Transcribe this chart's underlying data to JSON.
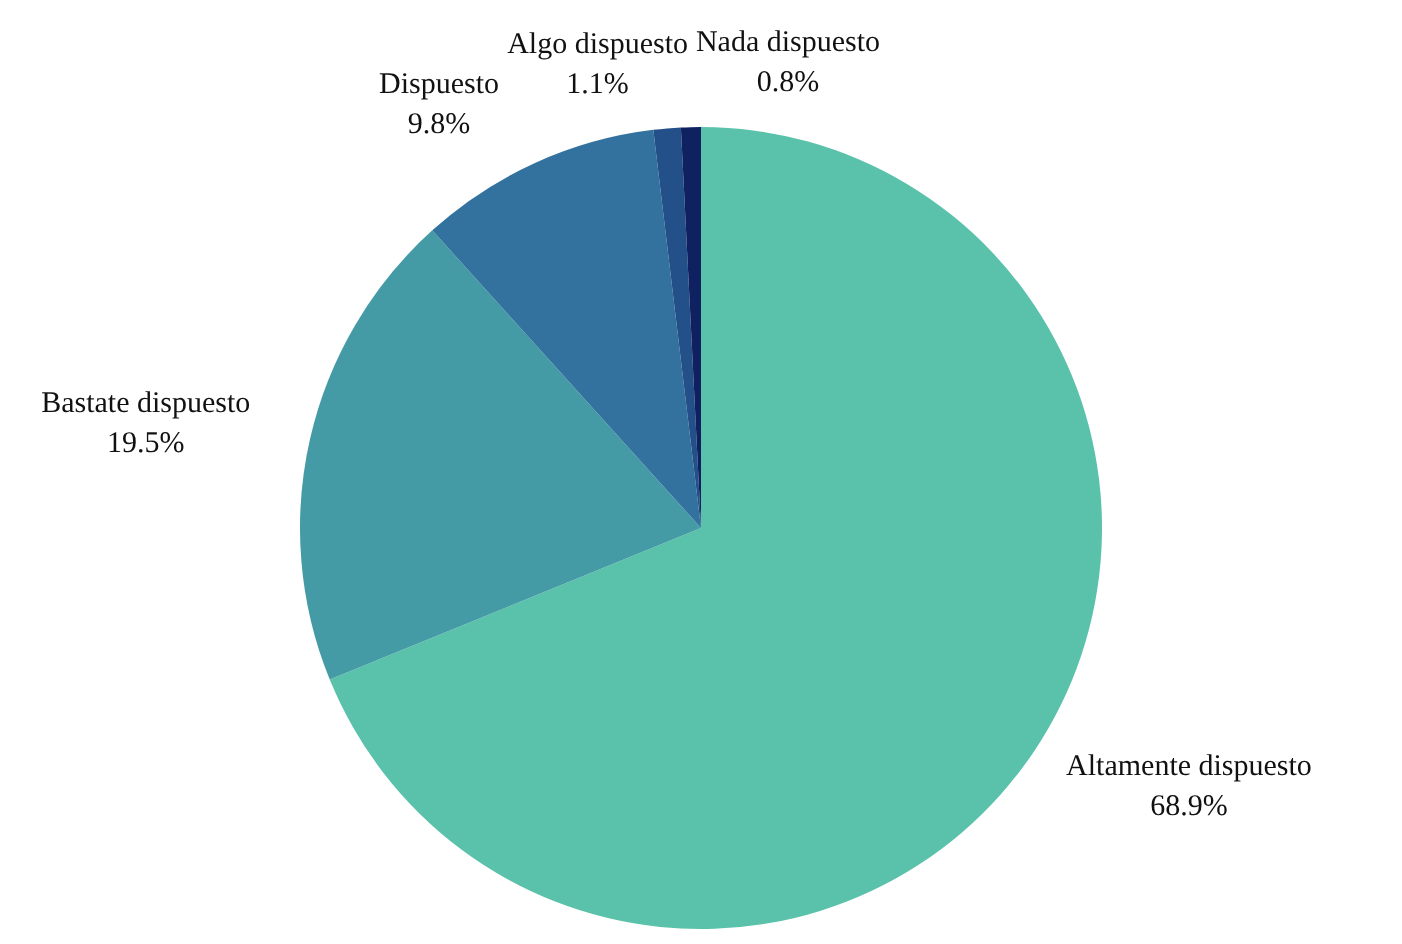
{
  "chart_data": {
    "type": "pie",
    "categories": [
      "Altamente dispuesto",
      "Bastate dispuesto",
      "Dispuesto",
      "Algo dispuesto",
      "Nada dispuesto"
    ],
    "values": [
      68.9,
      19.5,
      9.8,
      1.1,
      0.8
    ],
    "colors": [
      "#5ac1aa",
      "#459ba5",
      "#33729e",
      "#24508a",
      "#0f2160"
    ],
    "value_labels": [
      "68.9%",
      "19.5%",
      "9.8%",
      "1.1%",
      "0.8%"
    ],
    "legend": false
  }
}
